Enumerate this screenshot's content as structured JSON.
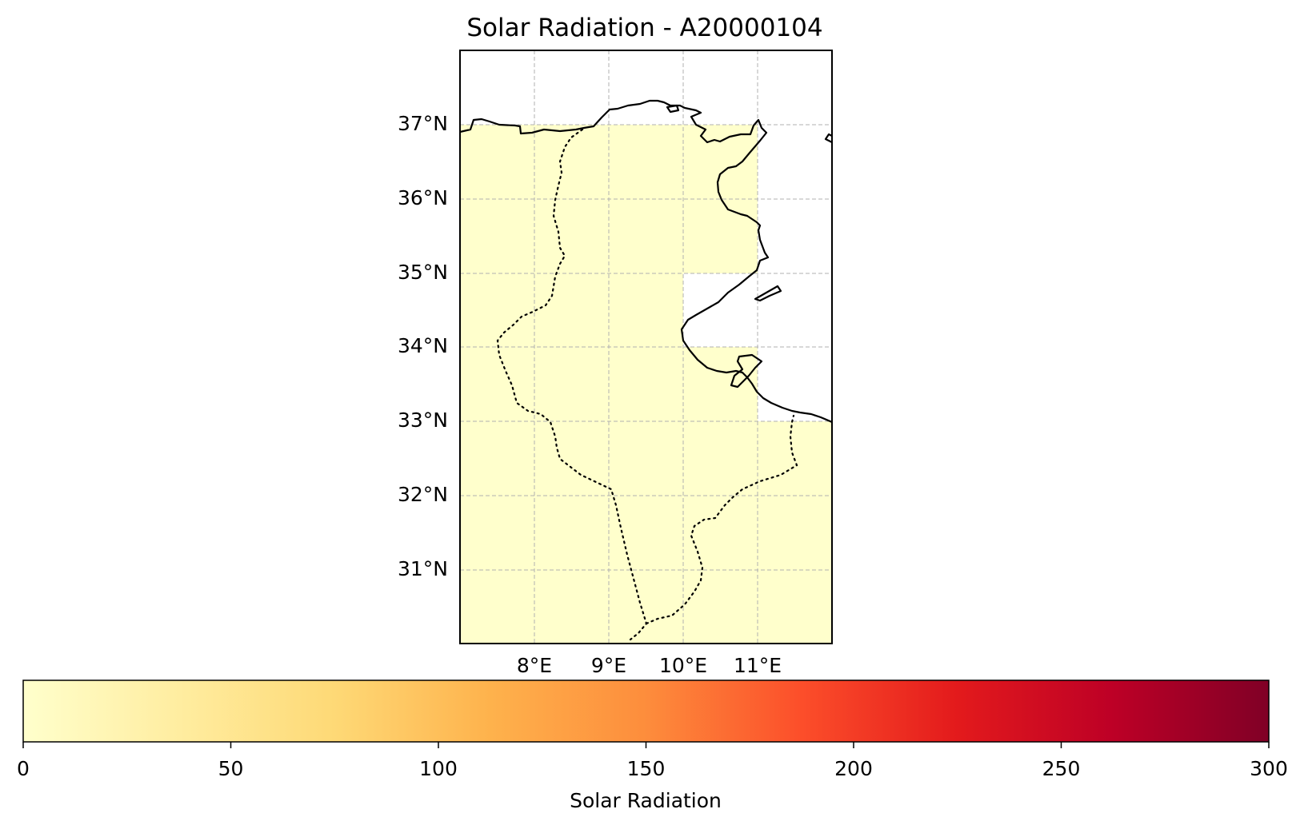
{
  "title": "Solar Radiation - A20000104",
  "map": {
    "lat_ticks": [
      {
        "value": 37,
        "label": "37°N"
      },
      {
        "value": 36,
        "label": "36°N"
      },
      {
        "value": 35,
        "label": "35°N"
      },
      {
        "value": 34,
        "label": "34°N"
      },
      {
        "value": 33,
        "label": "33°N"
      },
      {
        "value": 32,
        "label": "32°N"
      },
      {
        "value": 31,
        "label": "31°N"
      }
    ],
    "lon_ticks": [
      {
        "value": 8,
        "label": "8°E"
      },
      {
        "value": 9,
        "label": "9°E"
      },
      {
        "value": 10,
        "label": "10°E"
      },
      {
        "value": 11,
        "label": "11°E"
      }
    ],
    "extent": {
      "lon_min": 7,
      "lon_max": 12,
      "lat_min": 30,
      "lat_max": 38
    },
    "gridlines": "dashed",
    "field_color": "#ffffcc",
    "coastline_color": "#000000",
    "border_style": "dotted"
  },
  "colorbar": {
    "label": "Solar Radiation",
    "ticks": [
      "0",
      "50",
      "100",
      "150",
      "200",
      "250",
      "300"
    ],
    "range": [
      0,
      300
    ],
    "colormap": "YlOrRd",
    "colors": [
      "#ffffcc",
      "#ffeda0",
      "#fed976",
      "#feb24c",
      "#fd8d3c",
      "#fc4e2a",
      "#e31a1c",
      "#bd0026",
      "#800026"
    ]
  }
}
